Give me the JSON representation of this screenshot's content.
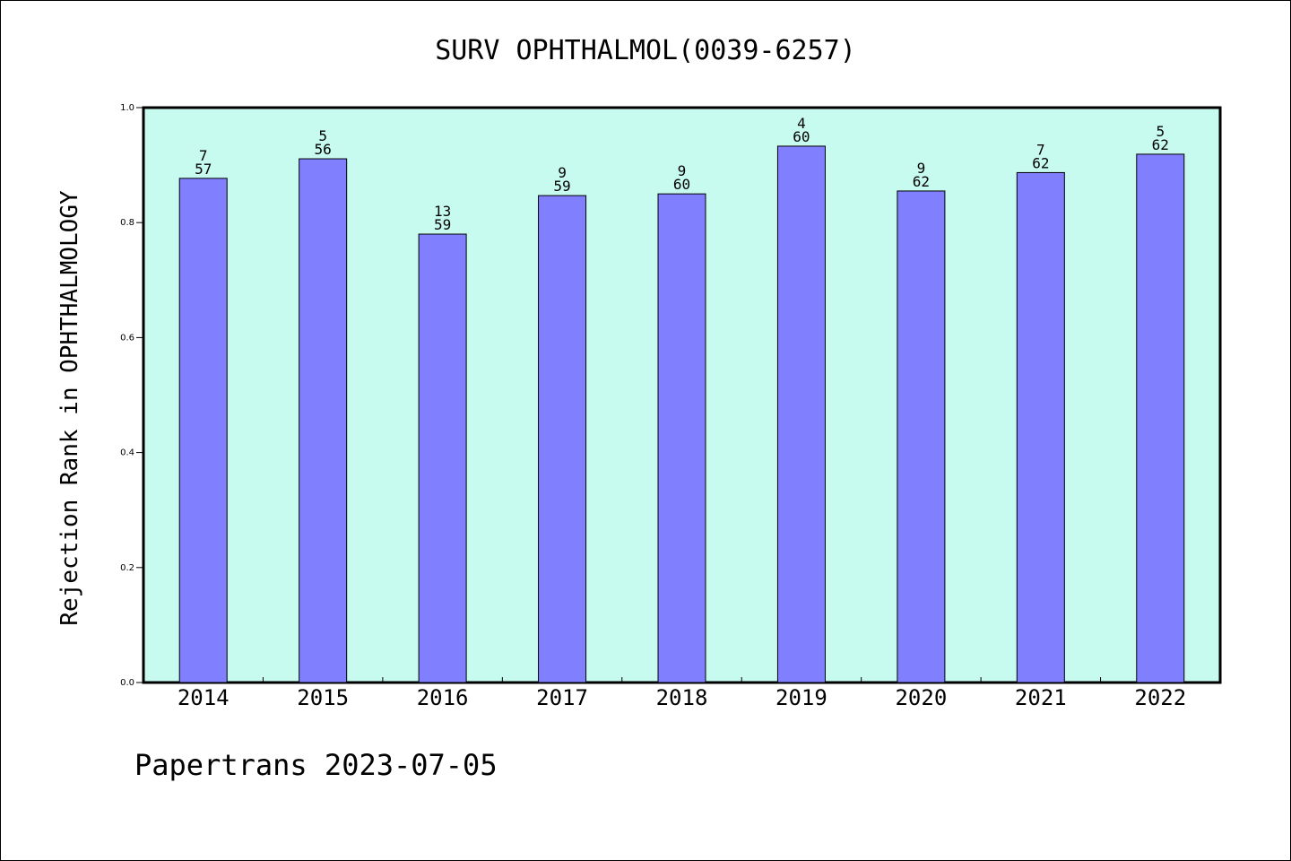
{
  "chart_data": {
    "type": "bar",
    "title": "SURV OPHTHALMOL(0039-6257)",
    "xlabel": "",
    "ylabel": "Rejection Rank in OPHTHALMOLOGY",
    "ylim": [
      0,
      1.0
    ],
    "yticks": [
      "0.0",
      "0.2",
      "0.4",
      "0.6",
      "0.8",
      "1.0"
    ],
    "categories": [
      "2014",
      "2015",
      "2016",
      "2017",
      "2018",
      "2019",
      "2020",
      "2021",
      "2022"
    ],
    "values": [
      0.877,
      0.911,
      0.78,
      0.847,
      0.85,
      0.933,
      0.855,
      0.887,
      0.919
    ],
    "labels_top": [
      "7",
      "5",
      "13",
      "9",
      "9",
      "4",
      "9",
      "7",
      "5"
    ],
    "labels_bottom": [
      "57",
      "56",
      "59",
      "59",
      "60",
      "60",
      "62",
      "62",
      "62"
    ],
    "grid": false,
    "legend": "none",
    "colors": {
      "plot_background": "#c8fbef",
      "bar_fill": "#8080ff",
      "bar_stroke": "#000000"
    }
  },
  "footer": {
    "credit": "Papertrans 2023-07-05"
  }
}
